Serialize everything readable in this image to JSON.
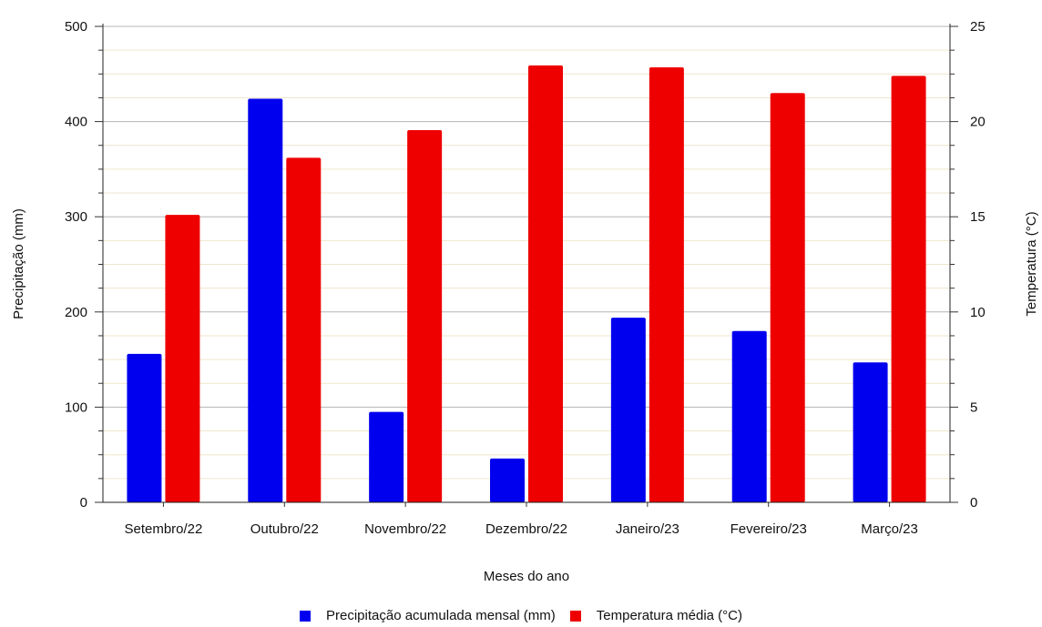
{
  "chart_data": {
    "type": "bar",
    "categories": [
      "Setembro/22",
      "Outubro/22",
      "Novembro/22",
      "Dezembro/22",
      "Janeiro/23",
      "Fevereiro/23",
      "Março/23"
    ],
    "series": [
      {
        "name": "Precipitação acumulada mensal (mm)",
        "axis": "left",
        "color": "#0000ee",
        "values": [
          156,
          424,
          95,
          46,
          194,
          180,
          147
        ]
      },
      {
        "name": "Temperatura média (°C)",
        "axis": "right",
        "color": "#ee0000",
        "values": [
          15.1,
          18.1,
          19.55,
          22.95,
          22.85,
          21.5,
          22.4
        ]
      }
    ],
    "xlabel": "Meses do ano",
    "ylabel": "Precipitação (mm)",
    "y2label": "Temperatura (°C)",
    "ylim": [
      0,
      500
    ],
    "y2lim": [
      0,
      25
    ],
    "yticks": [
      0,
      100,
      200,
      300,
      400,
      500
    ],
    "y2ticks": [
      0,
      5,
      10,
      15,
      20,
      25
    ],
    "grid": true,
    "legend_position": "bottom-center"
  }
}
